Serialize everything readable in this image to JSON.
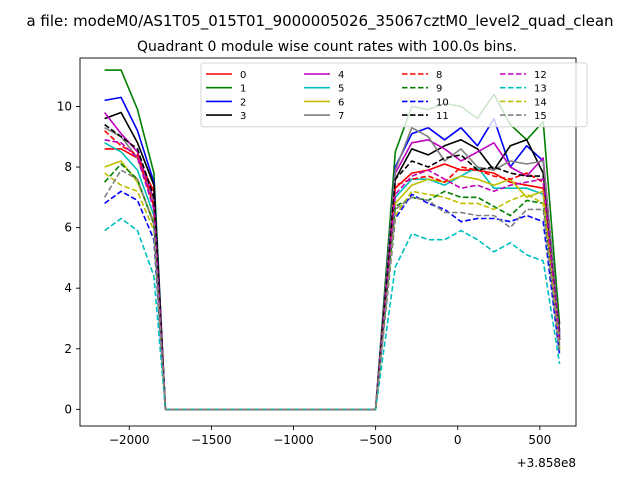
{
  "page": {
    "suptitle": "a file: modeM0/AS1T05_015T01_9000005026_35067cztM0_level2_quad_clean",
    "title": "Quadrant 0 module wise count rates with 100.0s bins."
  },
  "chart_data": {
    "type": "line",
    "title": "Quadrant 0 module wise count rates with 100.0s bins.",
    "xlabel": "",
    "ylabel": "",
    "x_offset_label": "+3.858e8",
    "xlim": [
      -2300,
      720
    ],
    "ylim": [
      -0.55,
      11.6
    ],
    "xticks": [
      -2000,
      -1500,
      -1000,
      -500,
      0,
      500
    ],
    "xtick_labels": [
      "−2000",
      "−1500",
      "−1000",
      "−500",
      "0",
      "500"
    ],
    "yticks": [
      0,
      2,
      4,
      6,
      8,
      10
    ],
    "ytick_labels": [
      "0",
      "2",
      "4",
      "6",
      "8",
      "10"
    ],
    "grid": false,
    "legend_placement": "upper center",
    "legend_columns": 4,
    "x": [
      -2150,
      -2050,
      -1950,
      -1850,
      -1780,
      -500,
      -380,
      -280,
      -180,
      -80,
      20,
      120,
      220,
      320,
      420,
      520,
      620
    ],
    "series": [
      {
        "name": "0",
        "color": "#ff0000",
        "dash": "solid",
        "values": [
          8.6,
          8.6,
          8.3,
          7.2,
          0,
          0,
          7.3,
          7.8,
          7.9,
          8.1,
          7.9,
          7.9,
          7.8,
          7.5,
          7.4,
          7.3,
          2.3
        ]
      },
      {
        "name": "1",
        "color": "#008000",
        "dash": "solid",
        "values": [
          11.2,
          11.2,
          9.9,
          7.8,
          0,
          0,
          8.5,
          10.0,
          9.9,
          10.1,
          10.0,
          9.6,
          10.4,
          9.4,
          8.9,
          9.5,
          2.8
        ]
      },
      {
        "name": "2",
        "color": "#0000ff",
        "dash": "solid",
        "values": [
          10.2,
          10.3,
          9.2,
          7.5,
          0,
          0,
          8.0,
          9.1,
          9.3,
          8.9,
          9.3,
          8.7,
          9.6,
          8.0,
          8.7,
          8.2,
          2.5
        ]
      },
      {
        "name": "3",
        "color": "#000000",
        "dash": "solid",
        "values": [
          9.6,
          9.8,
          8.8,
          7.4,
          0,
          0,
          7.6,
          8.6,
          8.4,
          8.7,
          8.9,
          8.6,
          7.9,
          8.7,
          8.9,
          7.8,
          2.6
        ]
      },
      {
        "name": "4",
        "color": "#bf00bf",
        "dash": "solid",
        "values": [
          9.8,
          9.1,
          8.5,
          6.9,
          0,
          0,
          7.8,
          8.8,
          8.9,
          8.6,
          8.2,
          8.5,
          8.8,
          8.0,
          7.7,
          8.3,
          2.4
        ]
      },
      {
        "name": "5",
        "color": "#00bfbf",
        "dash": "solid",
        "values": [
          8.8,
          8.5,
          7.9,
          6.4,
          0,
          0,
          7.0,
          7.6,
          7.6,
          7.4,
          7.7,
          8.0,
          7.3,
          7.3,
          7.3,
          7.1,
          2.1
        ]
      },
      {
        "name": "6",
        "color": "#bfbf00",
        "dash": "solid",
        "values": [
          8.0,
          8.2,
          7.5,
          6.2,
          0,
          0,
          6.8,
          7.4,
          7.6,
          7.5,
          7.7,
          7.6,
          7.4,
          7.6,
          7.0,
          7.2,
          2.0
        ]
      },
      {
        "name": "7",
        "color": "#808080",
        "dash": "solid",
        "values": [
          9.3,
          9.0,
          8.3,
          6.8,
          0,
          0,
          7.9,
          9.3,
          9.0,
          8.2,
          8.6,
          8.0,
          7.9,
          8.2,
          8.1,
          8.2,
          2.4
        ]
      },
      {
        "name": "8",
        "color": "#ff0000",
        "dash": "dashed",
        "values": [
          9.2,
          8.7,
          8.4,
          6.7,
          0,
          0,
          7.4,
          7.6,
          7.7,
          7.5,
          8.0,
          7.9,
          7.7,
          7.6,
          7.8,
          7.5,
          2.2
        ]
      },
      {
        "name": "9",
        "color": "#008000",
        "dash": "dashed",
        "values": [
          7.5,
          8.1,
          7.6,
          6.1,
          0,
          0,
          6.7,
          7.0,
          6.9,
          7.2,
          7.0,
          7.0,
          6.7,
          6.4,
          6.9,
          6.8,
          1.9
        ]
      },
      {
        "name": "10",
        "color": "#0000ff",
        "dash": "dashed",
        "values": [
          6.8,
          7.2,
          6.9,
          5.6,
          0,
          0,
          6.3,
          7.1,
          6.8,
          6.6,
          6.2,
          6.3,
          6.3,
          6.2,
          6.4,
          6.2,
          1.8
        ]
      },
      {
        "name": "11",
        "color": "#000000",
        "dash": "dashed",
        "values": [
          9.4,
          9.0,
          8.6,
          7.0,
          0,
          0,
          7.6,
          8.2,
          8.0,
          8.3,
          8.4,
          7.9,
          8.0,
          7.8,
          7.7,
          7.7,
          2.3
        ]
      },
      {
        "name": "12",
        "color": "#bf00bf",
        "dash": "dashed",
        "values": [
          8.9,
          8.8,
          8.3,
          6.6,
          0,
          0,
          7.1,
          7.7,
          7.9,
          7.6,
          7.3,
          7.4,
          7.2,
          7.4,
          7.5,
          7.6,
          2.2
        ]
      },
      {
        "name": "13",
        "color": "#00bfbf",
        "dash": "dashed",
        "values": [
          5.9,
          6.3,
          5.9,
          4.4,
          0,
          0,
          4.7,
          5.8,
          5.6,
          5.6,
          5.9,
          5.6,
          5.2,
          5.5,
          5.1,
          4.9,
          1.5
        ]
      },
      {
        "name": "14",
        "color": "#bfbf00",
        "dash": "dashed",
        "values": [
          7.8,
          7.4,
          7.2,
          5.9,
          0,
          0,
          6.4,
          7.2,
          7.1,
          7.0,
          6.8,
          6.8,
          6.6,
          6.9,
          7.1,
          6.8,
          2.0
        ]
      },
      {
        "name": "15",
        "color": "#808080",
        "dash": "dashed",
        "values": [
          7.0,
          7.9,
          7.6,
          6.1,
          0,
          0,
          6.6,
          7.0,
          6.9,
          6.5,
          6.5,
          6.4,
          6.4,
          6.0,
          6.6,
          6.6,
          1.9
        ]
      }
    ]
  }
}
